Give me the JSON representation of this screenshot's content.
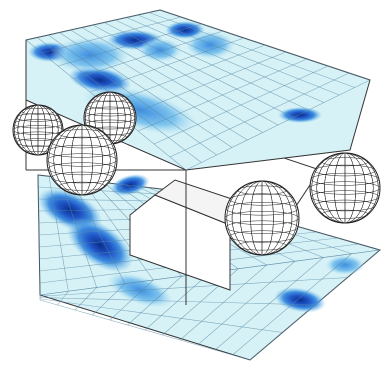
{
  "colors": {
    "background": "#ffffff",
    "mesh_base": "#d6f2f6",
    "mesh_line": "#5a8aa8",
    "level_1": "#bfe6f3",
    "level_2": "#7ec4ee",
    "level_3": "#3f8fe0",
    "level_4": "#1f55c6",
    "level_5": "#0b2f8c",
    "frame_edge": "#333333",
    "sphere_fill": "#ffffff",
    "sphere_line": "#222222"
  },
  "mesh": {
    "columns": 12,
    "rows": 10
  },
  "surfaces": [
    "top-panel",
    "front-face",
    "floor-panel"
  ],
  "spheres": [
    "left-back",
    "left-mid",
    "left-front",
    "right-front",
    "right-back"
  ]
}
